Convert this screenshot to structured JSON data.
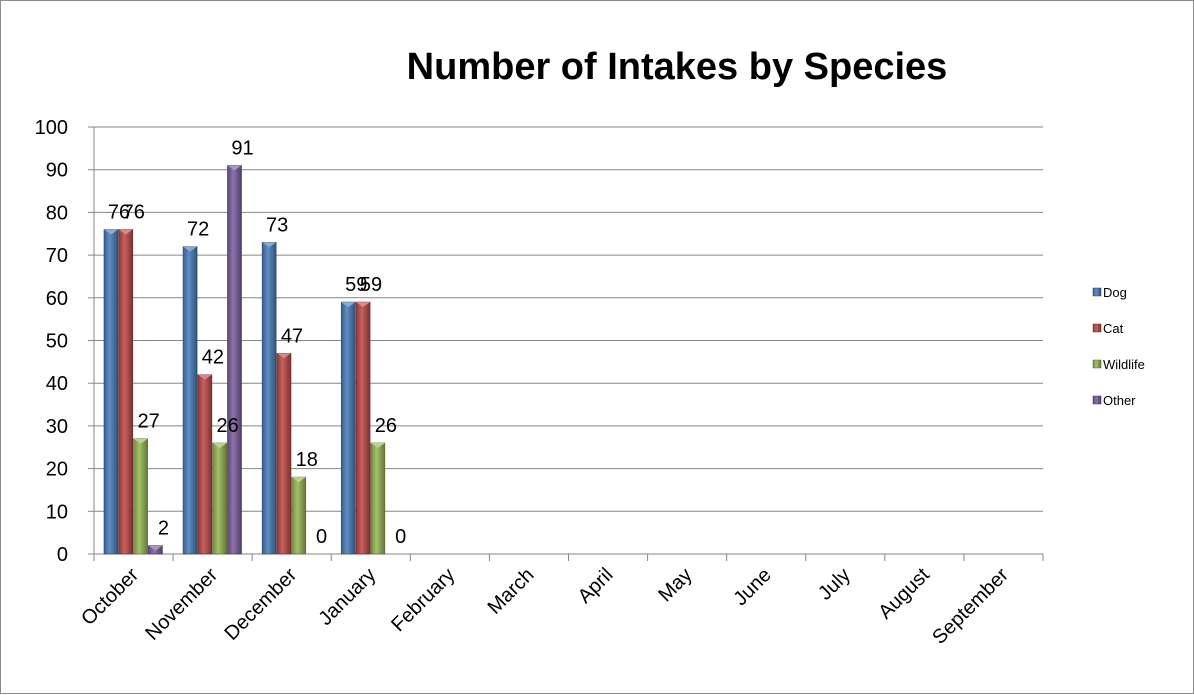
{
  "chart_data": {
    "type": "bar",
    "title": "Number of Intakes by Species",
    "xlabel": "",
    "ylabel": "",
    "ylim": [
      0,
      100
    ],
    "yticks": [
      0,
      10,
      20,
      30,
      40,
      50,
      60,
      70,
      80,
      90,
      100
    ],
    "grid": true,
    "legend_position": "right",
    "categories": [
      "October",
      "November",
      "December",
      "January",
      "February",
      "March",
      "April",
      "May",
      "June",
      "July",
      "August",
      "September"
    ],
    "series": [
      {
        "name": "Dog",
        "color": "#4a7ebb",
        "values": [
          76,
          72,
          73,
          59,
          null,
          null,
          null,
          null,
          null,
          null,
          null,
          null
        ]
      },
      {
        "name": "Cat",
        "color": "#be4b48",
        "values": [
          76,
          42,
          47,
          59,
          null,
          null,
          null,
          null,
          null,
          null,
          null,
          null
        ]
      },
      {
        "name": "Wildlife",
        "color": "#98b954",
        "values": [
          27,
          26,
          18,
          26,
          null,
          null,
          null,
          null,
          null,
          null,
          null,
          null
        ]
      },
      {
        "name": "Other",
        "color": "#7d5fa0",
        "values": [
          2,
          91,
          0,
          0,
          null,
          null,
          null,
          null,
          null,
          null,
          null,
          null
        ]
      }
    ]
  }
}
